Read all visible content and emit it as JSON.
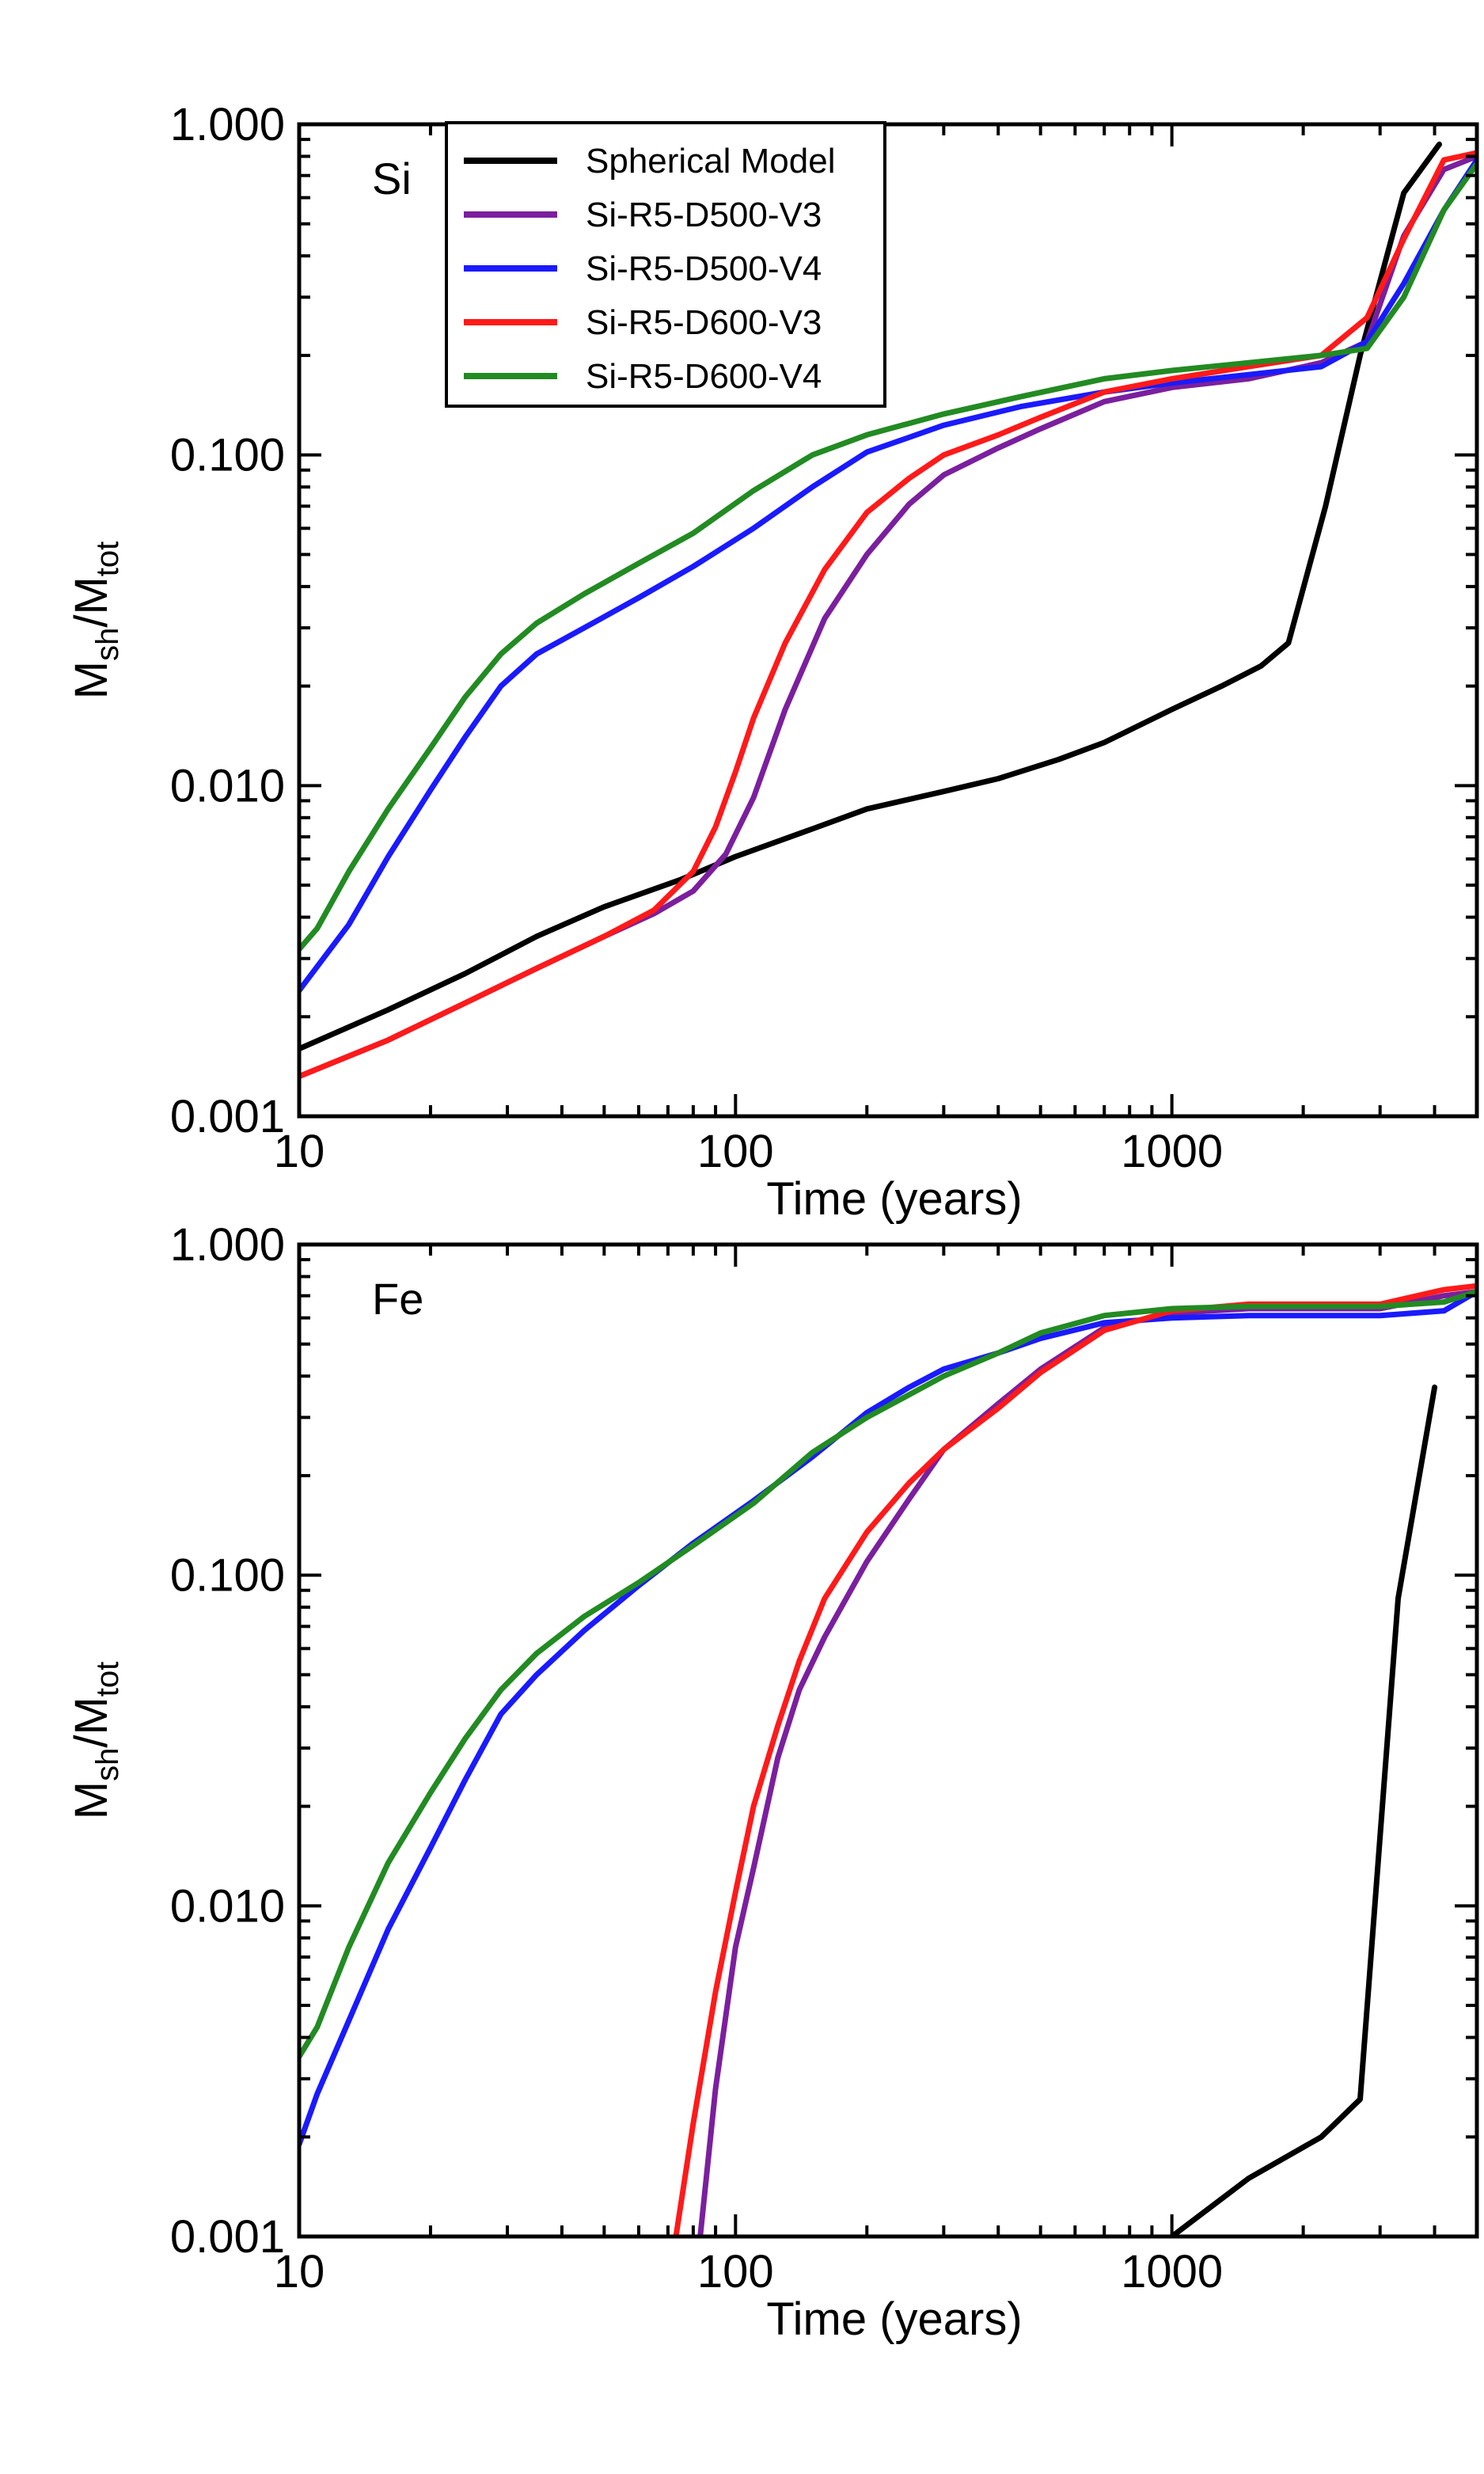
{
  "chart_data": [
    {
      "type": "line",
      "panel_label": "Si",
      "xlabel": "Time (years)",
      "ylabel": {
        "main": "M",
        "sub1": "sh",
        "sep": "/M",
        "sub2": "tot"
      },
      "xscale": "log",
      "yscale": "log",
      "xlim": [
        10,
        5000
      ],
      "ylim": [
        0.001,
        1.0
      ],
      "x_tick_labels": [
        {
          "value": 10,
          "label": "10"
        },
        {
          "value": 100,
          "label": "100"
        },
        {
          "value": 1000,
          "label": "1000"
        }
      ],
      "y_tick_labels": [
        {
          "value": 0.001,
          "label": "0.001"
        },
        {
          "value": 0.01,
          "label": "0.010"
        },
        {
          "value": 0.1,
          "label": "0.100"
        },
        {
          "value": 1.0,
          "label": "1.000"
        }
      ],
      "legend_position": "top-left",
      "series": [
        {
          "name": "Spherical Model",
          "color": "#000000",
          "x": [
            10,
            16,
            24,
            35,
            50,
            75,
            100,
            150,
            200,
            300,
            400,
            550,
            700,
            1000,
            1300,
            1600,
            1850,
            2250,
            2700,
            3400,
            4100
          ],
          "y": [
            0.0016,
            0.0021,
            0.0027,
            0.0035,
            0.0043,
            0.0052,
            0.0061,
            0.0074,
            0.0085,
            0.0096,
            0.0105,
            0.012,
            0.0135,
            0.017,
            0.02,
            0.023,
            0.027,
            0.07,
            0.2,
            0.62,
            0.87
          ]
        },
        {
          "name": "Si-R5-D500-V3",
          "color": "#7b1f9e",
          "x": [
            10,
            16,
            24,
            35,
            50,
            65,
            80,
            95,
            110,
            130,
            160,
            200,
            250,
            300,
            400,
            500,
            700,
            1000,
            1500,
            2200,
            2800,
            3400,
            4200,
            5000
          ],
          "y": [
            0.00132,
            0.0017,
            0.0022,
            0.0028,
            0.0035,
            0.0041,
            0.0048,
            0.0062,
            0.0092,
            0.017,
            0.032,
            0.05,
            0.071,
            0.087,
            0.105,
            0.12,
            0.145,
            0.16,
            0.17,
            0.19,
            0.22,
            0.46,
            0.73,
            0.8
          ]
        },
        {
          "name": "Si-R5-D500-V4",
          "color": "#1a1aff",
          "x": [
            10,
            13,
            16,
            20,
            24,
            29,
            35,
            45,
            60,
            80,
            110,
            150,
            200,
            300,
            450,
            700,
            1000,
            1500,
            2200,
            2800,
            3400,
            4200,
            5000
          ],
          "y": [
            0.0024,
            0.0038,
            0.0061,
            0.0097,
            0.014,
            0.02,
            0.025,
            0.03,
            0.037,
            0.046,
            0.06,
            0.08,
            0.102,
            0.123,
            0.14,
            0.155,
            0.165,
            0.175,
            0.185,
            0.22,
            0.33,
            0.55,
            0.78
          ]
        },
        {
          "name": "Si-R5-D600-V3",
          "color": "#ff1a1a",
          "x": [
            10,
            16,
            24,
            35,
            50,
            65,
            80,
            90,
            100,
            110,
            130,
            160,
            200,
            250,
            300,
            400,
            500,
            700,
            1000,
            1500,
            2200,
            2800,
            3400,
            4200,
            5000
          ],
          "y": [
            0.00132,
            0.0017,
            0.0022,
            0.0028,
            0.0035,
            0.0042,
            0.0055,
            0.0075,
            0.011,
            0.016,
            0.027,
            0.045,
            0.067,
            0.085,
            0.1,
            0.115,
            0.13,
            0.155,
            0.17,
            0.185,
            0.2,
            0.26,
            0.45,
            0.78,
            0.82
          ]
        },
        {
          "name": "Si-R5-D600-V4",
          "color": "#228b22",
          "x": [
            10,
            11,
            13,
            16,
            20,
            24,
            29,
            35,
            45,
            60,
            80,
            110,
            150,
            200,
            300,
            450,
            700,
            1000,
            1500,
            2200,
            2800,
            3400,
            4200,
            5000
          ],
          "y": [
            0.0032,
            0.0037,
            0.0055,
            0.0085,
            0.013,
            0.0185,
            0.025,
            0.031,
            0.038,
            0.047,
            0.058,
            0.078,
            0.1,
            0.115,
            0.133,
            0.15,
            0.17,
            0.18,
            0.19,
            0.2,
            0.21,
            0.3,
            0.55,
            0.76
          ]
        }
      ],
      "legend_entries": [
        "Spherical Model",
        "Si-R5-D500-V3",
        "Si-R5-D500-V4",
        "Si-R5-D600-V3",
        "Si-R5-D600-V4"
      ]
    },
    {
      "type": "line",
      "panel_label": "Fe",
      "xlabel": "Time (years)",
      "ylabel": {
        "main": "M",
        "sub1": "sh",
        "sep": "/M",
        "sub2": "tot"
      },
      "xscale": "log",
      "yscale": "log",
      "xlim": [
        10,
        5000
      ],
      "ylim": [
        0.001,
        1.0
      ],
      "x_tick_labels": [
        {
          "value": 10,
          "label": "10"
        },
        {
          "value": 100,
          "label": "100"
        },
        {
          "value": 1000,
          "label": "1000"
        }
      ],
      "y_tick_labels": [
        {
          "value": 0.001,
          "label": "0.001"
        },
        {
          "value": 0.01,
          "label": "0.010"
        },
        {
          "value": 0.1,
          "label": "0.100"
        },
        {
          "value": 1.0,
          "label": "1.000"
        }
      ],
      "series": [
        {
          "name": "Spherical Model",
          "color": "#000000",
          "x": [
            1000,
            1500,
            2200,
            2700,
            3300,
            4000
          ],
          "y": [
            0.001,
            0.0015,
            0.002,
            0.0026,
            0.085,
            0.37
          ]
        },
        {
          "name": "Si-R5-D500-V3",
          "color": "#7b1f9e",
          "x": [
            83,
            90,
            100,
            110,
            125,
            140,
            160,
            200,
            250,
            300,
            400,
            500,
            700,
            1000,
            1500,
            2200,
            3000,
            4200,
            5000
          ],
          "y": [
            0.001,
            0.0028,
            0.0075,
            0.013,
            0.028,
            0.045,
            0.065,
            0.11,
            0.17,
            0.24,
            0.33,
            0.42,
            0.56,
            0.62,
            0.64,
            0.64,
            0.64,
            0.7,
            0.72
          ]
        },
        {
          "name": "Si-R5-D500-V4",
          "color": "#1a1aff",
          "x": [
            10,
            11,
            13,
            16,
            20,
            24,
            29,
            35,
            45,
            60,
            80,
            110,
            150,
            200,
            250,
            300,
            400,
            500,
            700,
            1000,
            1500,
            2200,
            3000,
            4200,
            5000
          ],
          "y": [
            0.0019,
            0.0027,
            0.0045,
            0.0085,
            0.015,
            0.024,
            0.038,
            0.05,
            0.068,
            0.093,
            0.125,
            0.168,
            0.228,
            0.31,
            0.37,
            0.42,
            0.47,
            0.52,
            0.58,
            0.6,
            0.61,
            0.61,
            0.61,
            0.63,
            0.72
          ]
        },
        {
          "name": "Si-R5-D600-V3",
          "color": "#ff1a1a",
          "x": [
            73,
            80,
            90,
            100,
            110,
            125,
            140,
            160,
            200,
            250,
            300,
            400,
            500,
            700,
            1000,
            1500,
            2200,
            3000,
            4200,
            5000
          ],
          "y": [
            0.001,
            0.0022,
            0.0055,
            0.011,
            0.02,
            0.035,
            0.055,
            0.085,
            0.135,
            0.19,
            0.24,
            0.32,
            0.41,
            0.55,
            0.63,
            0.66,
            0.66,
            0.66,
            0.73,
            0.75
          ]
        },
        {
          "name": "Si-R5-D600-V4",
          "color": "#228b22",
          "x": [
            10,
            11,
            13,
            16,
            20,
            24,
            29,
            35,
            45,
            60,
            80,
            110,
            150,
            200,
            300,
            400,
            500,
            700,
            1000,
            1500,
            2200,
            3000,
            4200,
            5000
          ],
          "y": [
            0.0035,
            0.0043,
            0.0075,
            0.0135,
            0.022,
            0.032,
            0.045,
            0.058,
            0.075,
            0.095,
            0.123,
            0.165,
            0.235,
            0.3,
            0.4,
            0.47,
            0.54,
            0.61,
            0.64,
            0.65,
            0.65,
            0.65,
            0.67,
            0.72
          ]
        }
      ]
    }
  ]
}
